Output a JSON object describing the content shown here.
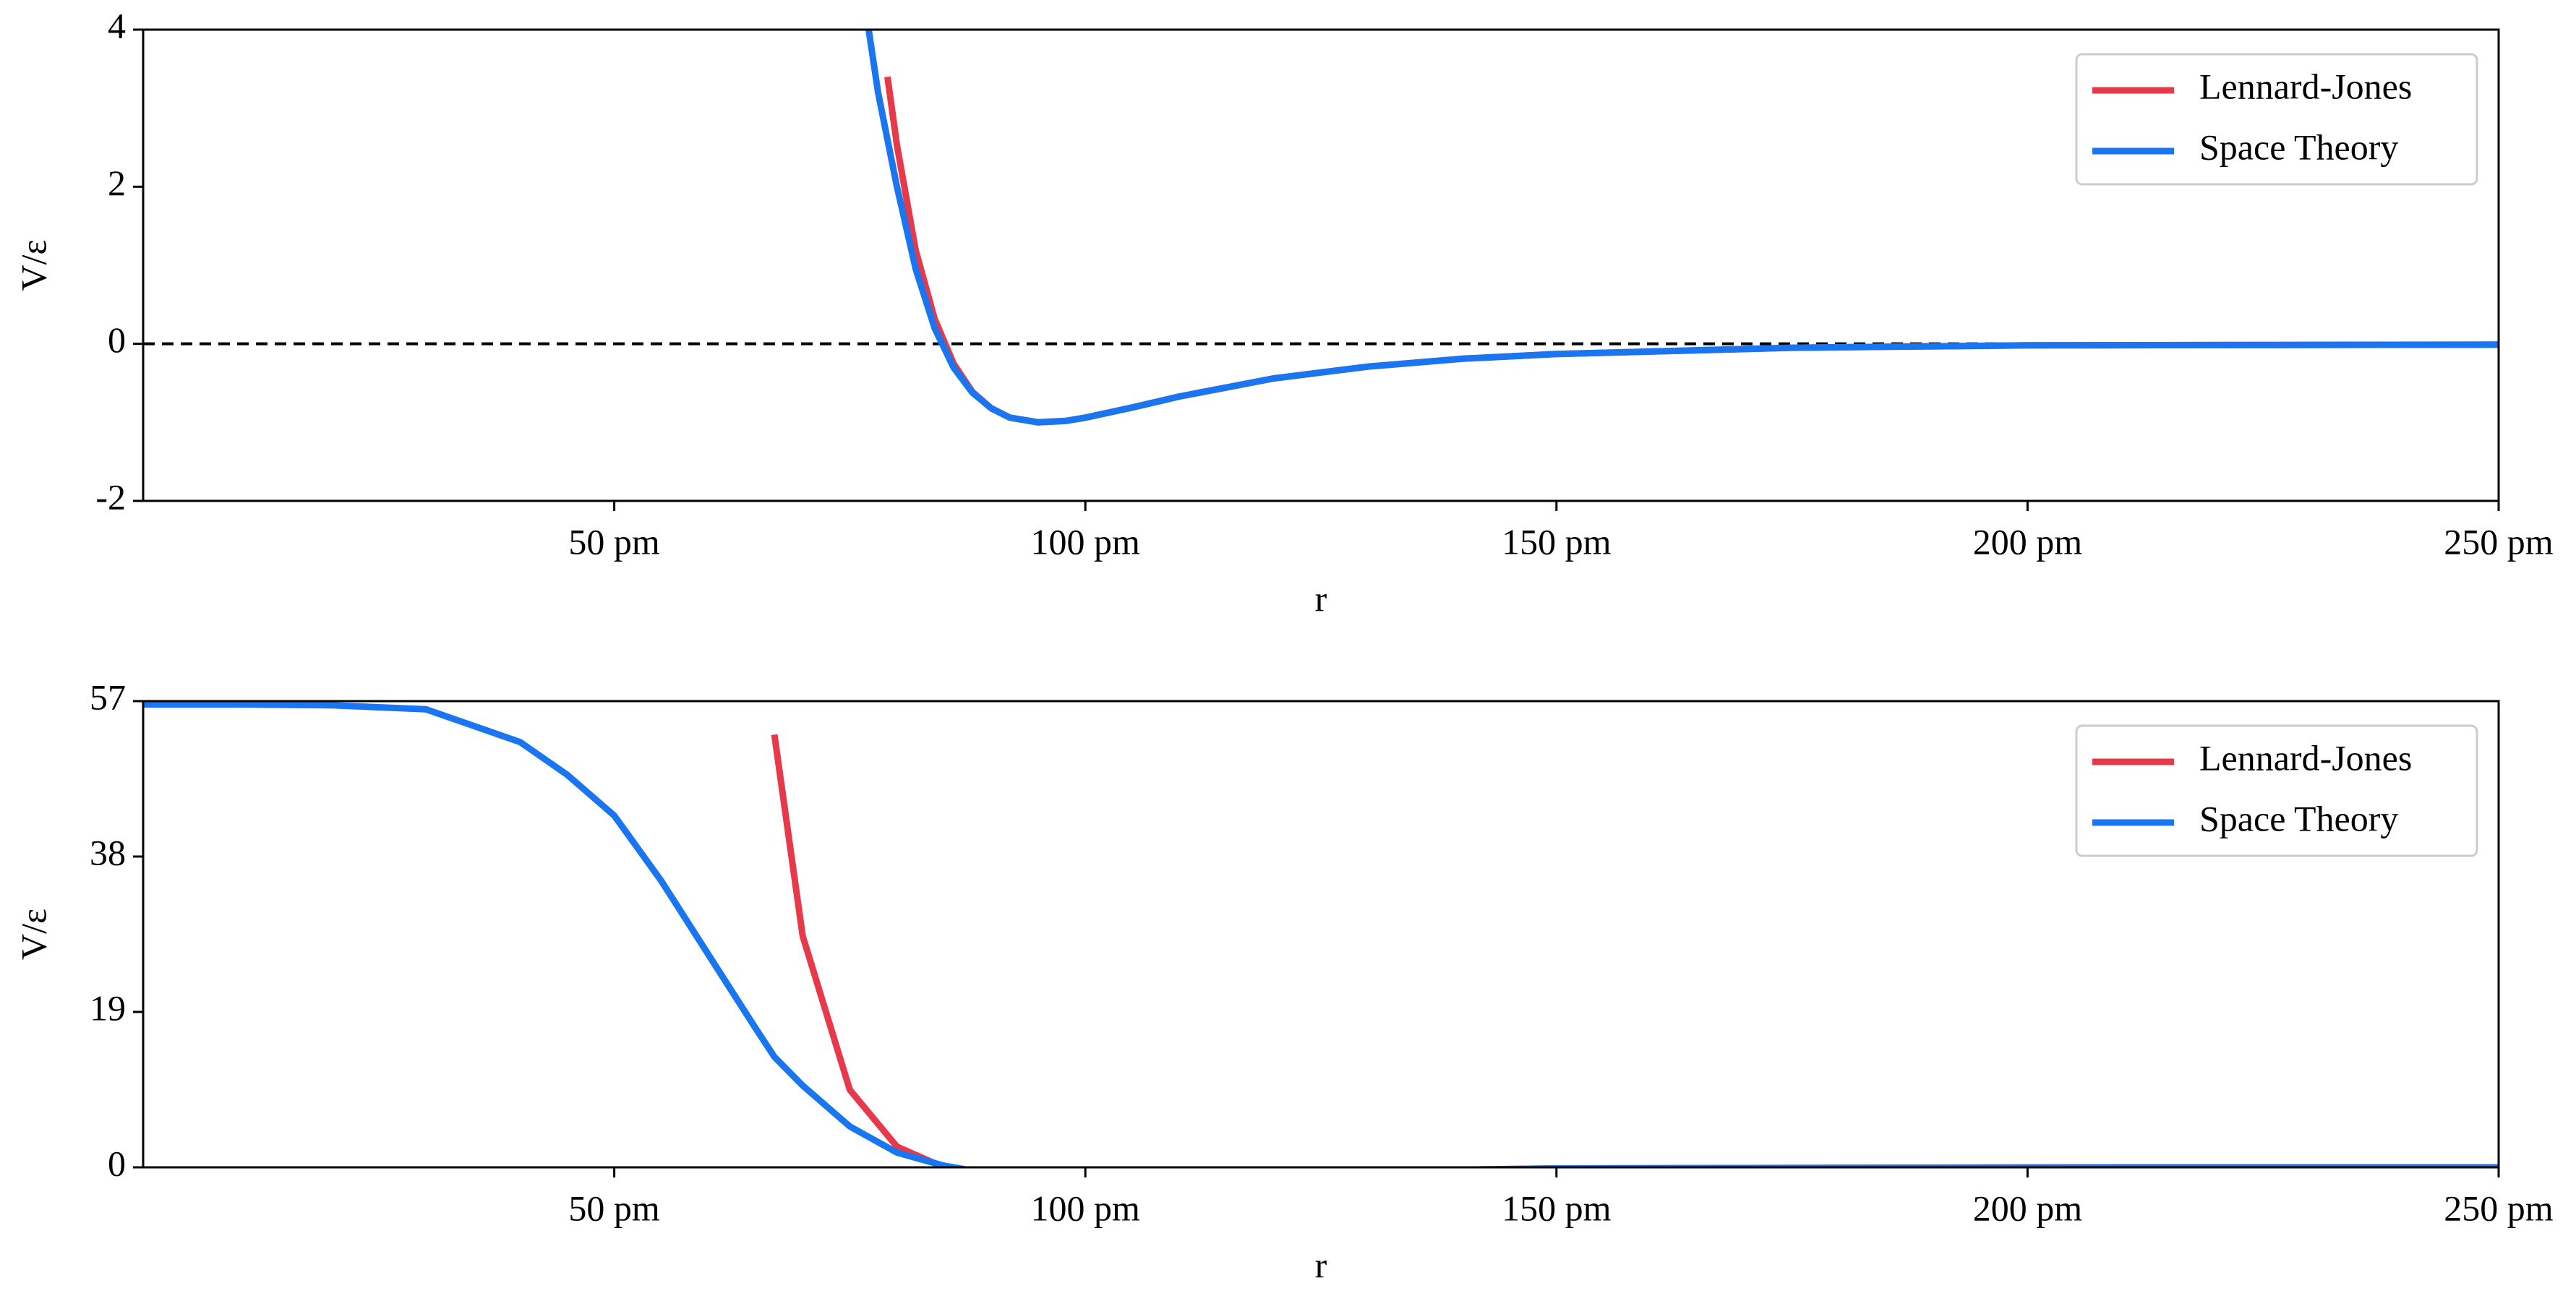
{
  "chart_data": [
    {
      "type": "line",
      "xlabel": "r",
      "ylabel": "V/ε",
      "xlim": [
        0,
        250
      ],
      "xticks": [
        {
          "value": 50,
          "label": "50 pm"
        },
        {
          "value": 100,
          "label": "100 pm"
        },
        {
          "value": 150,
          "label": "150 pm"
        },
        {
          "value": 200,
          "label": "200 pm"
        },
        {
          "value": 250,
          "label": "250 pm"
        }
      ],
      "ylim": [
        -2,
        4
      ],
      "yticks": [
        -2,
        0,
        2,
        4
      ],
      "hline": 0,
      "legend": "upper right",
      "x": [
        77,
        78,
        79,
        80,
        82,
        84,
        86,
        88,
        90,
        92,
        95,
        98,
        100,
        105,
        110,
        120,
        130,
        140,
        150,
        175,
        200,
        250
      ],
      "series": [
        {
          "name": "Lennard-Jones",
          "color": "#e8394a",
          "values": [
            null,
            null,
            3.4,
            2.53,
            1.19,
            0.32,
            -0.25,
            -0.61,
            -0.82,
            -0.94,
            -1,
            -0.98,
            -0.94,
            -0.81,
            -0.67,
            -0.44,
            -0.29,
            -0.19,
            -0.13,
            -0.05,
            -0.02,
            -0.01
          ]
        },
        {
          "name": "Space Theory",
          "color": "#1a75f0",
          "values": [
            4,
            3.2,
            2.6,
            2.0,
            0.95,
            0.2,
            -0.3,
            -0.62,
            -0.82,
            -0.94,
            -1,
            -0.98,
            -0.94,
            -0.81,
            -0.67,
            -0.44,
            -0.29,
            -0.19,
            -0.13,
            -0.05,
            -0.02,
            -0.01
          ]
        }
      ]
    },
    {
      "type": "line",
      "xlabel": "r",
      "ylabel": "V/ε",
      "xlim": [
        0,
        250
      ],
      "xticks": [
        {
          "value": 50,
          "label": "50 pm"
        },
        {
          "value": 100,
          "label": "100 pm"
        },
        {
          "value": 150,
          "label": "150 pm"
        },
        {
          "value": 200,
          "label": "200 pm"
        },
        {
          "value": 250,
          "label": "250 pm"
        }
      ],
      "ylim": [
        0,
        57
      ],
      "yticks": [
        0,
        19,
        38,
        57
      ],
      "legend": "upper right",
      "x": [
        0,
        10,
        20,
        30,
        40,
        45,
        50,
        55,
        60,
        65,
        67,
        70,
        75,
        80,
        85,
        90,
        100,
        150,
        200,
        250
      ],
      "series": [
        {
          "name": "Lennard-Jones",
          "color": "#e8394a",
          "values": [
            null,
            null,
            null,
            null,
            null,
            null,
            null,
            null,
            null,
            null,
            52.9,
            28.3,
            9.48,
            2.53,
            0,
            -0.82,
            -0.94,
            -0.13,
            -0.02,
            -0.01
          ]
        },
        {
          "name": "Space Theory",
          "color": "#1a75f0",
          "values": [
            56.6,
            56.6,
            56.5,
            56,
            52,
            48,
            43,
            35,
            26,
            17,
            13.5,
            10,
            5,
            1.8,
            0.2,
            -0.8,
            -0.94,
            -0.13,
            -0.02,
            -0.01
          ]
        }
      ]
    }
  ]
}
